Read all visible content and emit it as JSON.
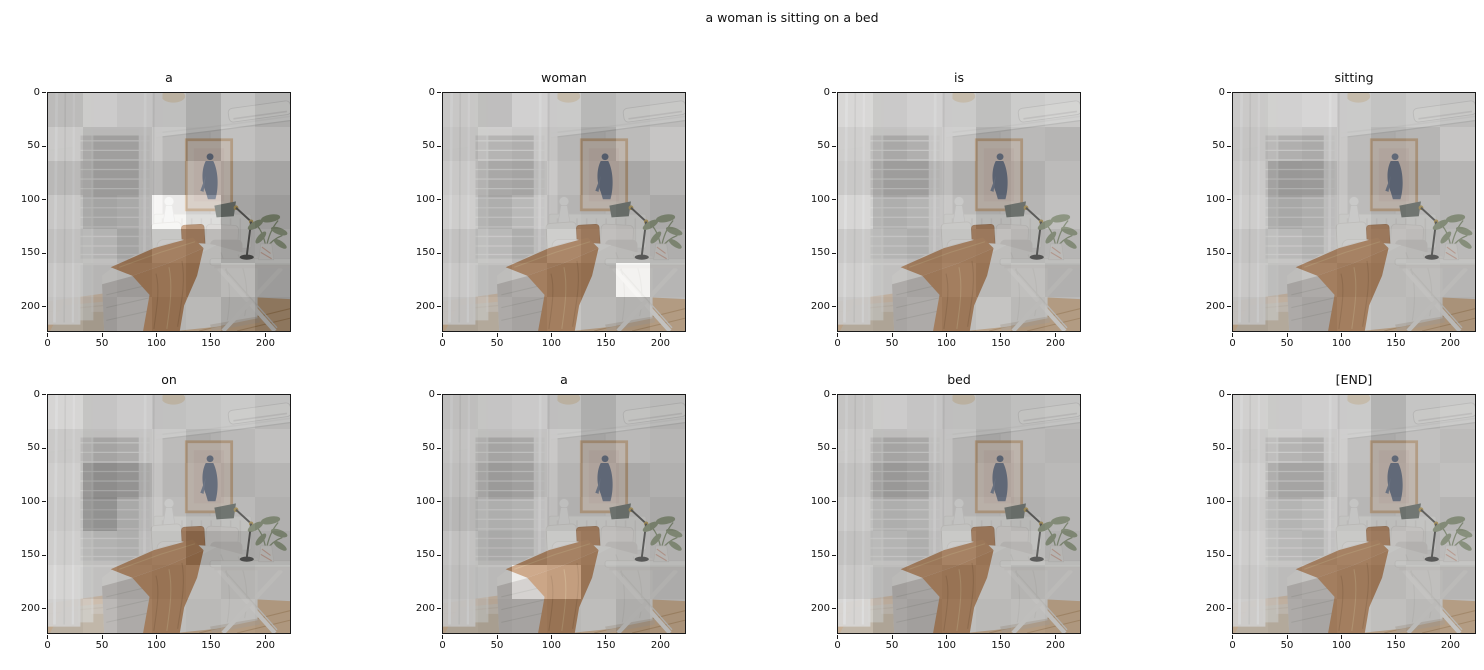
{
  "figure": {
    "suptitle": "a woman is sitting on a bed",
    "background": "#ffffff",
    "text_color": "#111111"
  },
  "axes": {
    "x_ticks": [
      "0",
      "50",
      "100",
      "150",
      "200"
    ],
    "y_ticks": [
      "0",
      "50",
      "100",
      "150",
      "200"
    ],
    "extent": 224
  },
  "chart_data": {
    "type": "heatmap",
    "title": "a woman is sitting on a bed",
    "caption_tokens": [
      "a",
      "woman",
      "is",
      "sitting",
      "on",
      "a",
      "bed",
      "[END]"
    ],
    "grid_size": 7,
    "image_size": 224,
    "layout": "2 rows x 4 columns, one attention map per generated token over the same bedroom photo",
    "overlay_alpha": 0.45,
    "subplots": [
      {
        "word": "a",
        "attention": [
          [
            0.48,
            0.62,
            0.55,
            0.5,
            0.35,
            0.55,
            0.42
          ],
          [
            0.6,
            0.46,
            0.46,
            0.58,
            0.33,
            0.6,
            0.52
          ],
          [
            0.46,
            0.42,
            0.42,
            0.46,
            0.52,
            0.42,
            0.36
          ],
          [
            0.58,
            0.42,
            0.46,
            1.0,
            0.78,
            0.36,
            0.28
          ],
          [
            0.52,
            0.55,
            0.42,
            0.58,
            0.5,
            0.3,
            0.34
          ],
          [
            0.58,
            0.5,
            0.46,
            0.5,
            0.42,
            0.5,
            0.28
          ],
          [
            0.55,
            0.46,
            0.55,
            0.46,
            0.5,
            0.36,
            0.22
          ]
        ]
      },
      {
        "word": "woman",
        "attention": [
          [
            0.58,
            0.5,
            0.66,
            0.6,
            0.44,
            0.52,
            0.56
          ],
          [
            0.54,
            0.64,
            0.6,
            0.56,
            0.35,
            0.56,
            0.64
          ],
          [
            0.6,
            0.54,
            0.5,
            0.6,
            0.38,
            0.38,
            0.5
          ],
          [
            0.64,
            0.5,
            0.6,
            0.54,
            0.5,
            0.46,
            0.4
          ],
          [
            0.54,
            0.6,
            0.5,
            0.64,
            0.54,
            0.5,
            0.44
          ],
          [
            0.6,
            0.54,
            0.6,
            0.5,
            0.46,
            1.0,
            0.5
          ],
          [
            0.54,
            0.6,
            0.54,
            0.6,
            0.5,
            0.44,
            0.54
          ]
        ]
      },
      {
        "word": "is",
        "attention": [
          [
            0.72,
            0.6,
            0.66,
            0.6,
            0.5,
            0.62,
            0.66
          ],
          [
            0.64,
            0.54,
            0.6,
            0.64,
            0.4,
            0.54,
            0.5
          ],
          [
            0.6,
            0.44,
            0.44,
            0.5,
            0.4,
            0.46,
            0.56
          ],
          [
            0.72,
            0.5,
            0.56,
            0.6,
            0.45,
            0.5,
            0.6
          ],
          [
            0.6,
            0.56,
            0.5,
            0.56,
            0.54,
            0.46,
            0.5
          ],
          [
            0.66,
            0.6,
            0.54,
            0.6,
            0.5,
            0.56,
            0.46
          ],
          [
            0.6,
            0.56,
            0.6,
            0.54,
            0.6,
            0.5,
            0.54
          ]
        ]
      },
      {
        "word": "sitting",
        "attention": [
          [
            0.6,
            0.66,
            0.7,
            0.6,
            0.54,
            0.6,
            0.56
          ],
          [
            0.56,
            0.6,
            0.56,
            0.6,
            0.45,
            0.5,
            0.64
          ],
          [
            0.6,
            0.4,
            0.42,
            0.56,
            0.4,
            0.42,
            0.5
          ],
          [
            0.64,
            0.45,
            0.5,
            0.6,
            0.5,
            0.54,
            0.5
          ],
          [
            0.56,
            0.6,
            0.54,
            0.6,
            0.54,
            0.5,
            0.54
          ],
          [
            0.6,
            0.54,
            0.6,
            0.54,
            0.5,
            0.54,
            0.5
          ],
          [
            0.54,
            0.6,
            0.54,
            0.6,
            0.54,
            0.5,
            0.46
          ]
        ]
      },
      {
        "word": "on",
        "attention": [
          [
            0.7,
            0.56,
            0.62,
            0.52,
            0.56,
            0.6,
            0.52
          ],
          [
            0.6,
            0.5,
            0.56,
            0.6,
            0.46,
            0.54,
            0.6
          ],
          [
            0.64,
            0.3,
            0.36,
            0.56,
            0.5,
            0.46,
            0.5
          ],
          [
            0.6,
            0.26,
            0.46,
            0.6,
            0.5,
            0.54,
            0.46
          ],
          [
            0.64,
            0.54,
            0.5,
            0.54,
            0.36,
            0.38,
            0.4
          ],
          [
            0.7,
            0.6,
            0.54,
            0.5,
            0.54,
            0.46,
            0.5
          ],
          [
            0.66,
            0.72,
            0.6,
            0.54,
            0.5,
            0.54,
            0.5
          ]
        ]
      },
      {
        "word": "a",
        "attention": [
          [
            0.5,
            0.56,
            0.6,
            0.5,
            0.36,
            0.5,
            0.46
          ],
          [
            0.54,
            0.5,
            0.54,
            0.6,
            0.4,
            0.54,
            0.5
          ],
          [
            0.5,
            0.42,
            0.46,
            0.54,
            0.44,
            0.4,
            0.46
          ],
          [
            0.44,
            0.5,
            0.54,
            0.5,
            0.5,
            0.46,
            0.4
          ],
          [
            0.54,
            0.46,
            0.5,
            0.6,
            0.54,
            0.5,
            0.46
          ],
          [
            0.5,
            0.54,
            0.95,
            0.88,
            0.5,
            0.46,
            0.42
          ],
          [
            0.54,
            0.5,
            0.54,
            0.5,
            0.54,
            0.4,
            0.46
          ]
        ]
      },
      {
        "word": "bed",
        "attention": [
          [
            0.56,
            0.62,
            0.56,
            0.5,
            0.44,
            0.5,
            0.54
          ],
          [
            0.6,
            0.5,
            0.54,
            0.54,
            0.4,
            0.54,
            0.5
          ],
          [
            0.54,
            0.4,
            0.45,
            0.5,
            0.45,
            0.5,
            0.54
          ],
          [
            0.6,
            0.5,
            0.54,
            0.54,
            0.5,
            0.46,
            0.5
          ],
          [
            0.54,
            0.56,
            0.5,
            0.6,
            0.5,
            0.54,
            0.46
          ],
          [
            0.6,
            0.5,
            0.54,
            0.5,
            0.54,
            0.46,
            0.5
          ],
          [
            0.72,
            0.56,
            0.5,
            0.54,
            0.5,
            0.54,
            0.5
          ]
        ]
      },
      {
        "word": "[END]",
        "attention": [
          [
            0.66,
            0.6,
            0.64,
            0.6,
            0.4,
            0.56,
            0.6
          ],
          [
            0.6,
            0.64,
            0.6,
            0.64,
            0.45,
            0.6,
            0.56
          ],
          [
            0.64,
            0.5,
            0.5,
            0.6,
            0.46,
            0.56,
            0.6
          ],
          [
            0.6,
            0.56,
            0.6,
            0.56,
            0.5,
            0.56,
            0.5
          ],
          [
            0.64,
            0.6,
            0.56,
            0.6,
            0.56,
            0.5,
            0.56
          ],
          [
            0.6,
            0.56,
            0.6,
            0.56,
            0.5,
            0.56,
            0.5
          ],
          [
            0.64,
            0.6,
            0.56,
            0.6,
            0.56,
            0.5,
            0.56
          ]
        ]
      }
    ]
  },
  "scene": {
    "description": "bedroom photo: window with venetian blinds and sheer curtains on left, bed with white bedding and caramel throw, framed artwork of a woman above headboard, white turned lamp, articulated desk lamp, plant in striped vase on white folding side table, wood floor with jute rug, ceiling light, air-conditioning unit top right",
    "colors": {
      "wall": "#d9d8d6",
      "right_wall": "#e2e1df",
      "ceiling": "#f3f2f0",
      "floor_wood": "#d3a97d",
      "rug": "#c9b69d",
      "bedding": "#e9e7e3",
      "throw_blanket": "#b1703a",
      "accent_pillow": "#a96a38",
      "artwork_figure": "#51607b",
      "frame": "#c8a176",
      "lamp_head": "#5c655d",
      "plant": "#84936f",
      "blinds": "#aaa9a7"
    }
  }
}
